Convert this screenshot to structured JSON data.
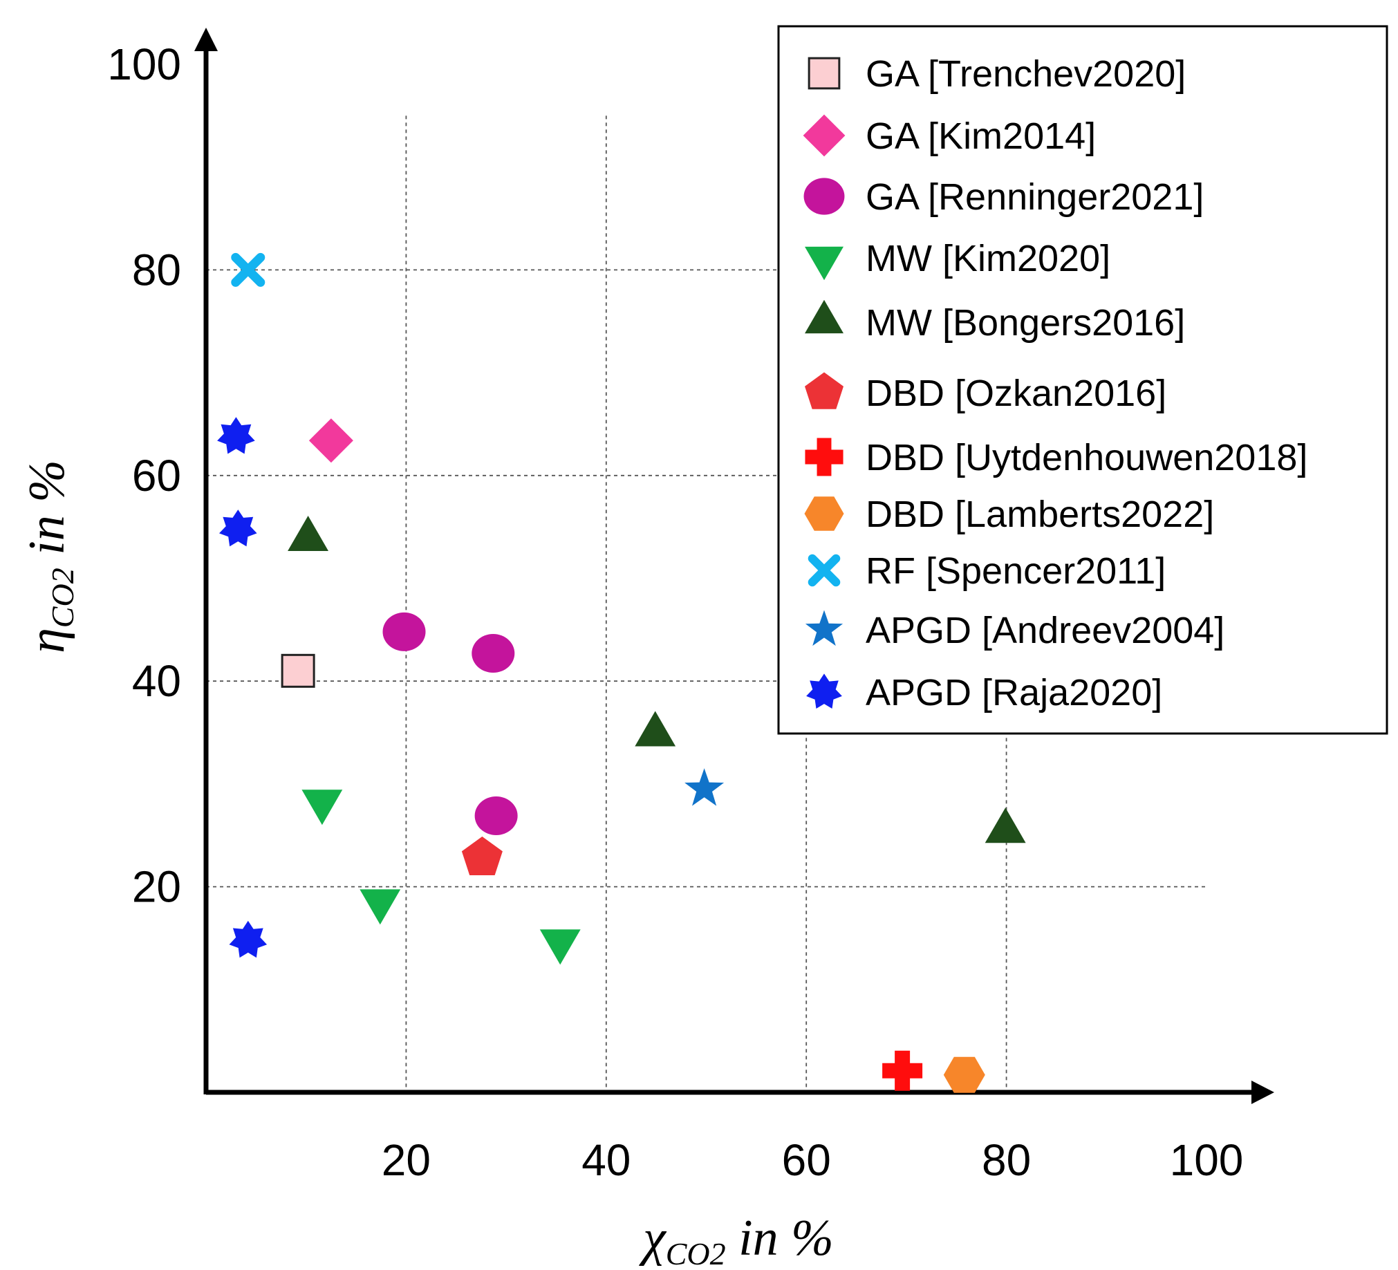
{
  "chart_data": {
    "type": "scatter",
    "title": "",
    "xlabel": {
      "symbol": "χ",
      "subscript": "CO2",
      "suffix": " in %"
    },
    "ylabel": {
      "symbol": "η",
      "subscript": "CO2",
      "suffix": " in %"
    },
    "xlim": [
      0,
      100
    ],
    "ylim": [
      0,
      100
    ],
    "x_ticks": [
      "20",
      "40",
      "60",
      "80",
      "100"
    ],
    "y_ticks": [
      "20",
      "40",
      "60",
      "80",
      "100"
    ],
    "grid": true,
    "legend_position": "top-right",
    "series": [
      {
        "name": "GA [Trenchev2020]",
        "marker": "square",
        "color": "#fccfd2",
        "points": [
          {
            "x": 9.2,
            "y": 41
          }
        ]
      },
      {
        "name": "GA [Kim2014]",
        "marker": "diamond",
        "color": "#f2399c",
        "points": [
          {
            "x": 12.5,
            "y": 63.4
          }
        ]
      },
      {
        "name": "GA [Renninger2021]",
        "marker": "circle",
        "color": "#c4149c",
        "points": [
          {
            "x": 19.8,
            "y": 44.8
          },
          {
            "x": 28.7,
            "y": 42.7
          },
          {
            "x": 29,
            "y": 26.9
          }
        ]
      },
      {
        "name": "MW [Kim2020]",
        "marker": "triangle-down",
        "color": "#13b24a",
        "points": [
          {
            "x": 11.6,
            "y": 28.3
          },
          {
            "x": 17.4,
            "y": 18.6
          },
          {
            "x": 35.4,
            "y": 14.7
          }
        ]
      },
      {
        "name": "MW [Bongers2016]",
        "marker": "triangle-up",
        "color": "#1f4e1a",
        "points": [
          {
            "x": 10.2,
            "y": 53.8
          },
          {
            "x": 44.9,
            "y": 34.8
          },
          {
            "x": 79.9,
            "y": 25.4
          }
        ]
      },
      {
        "name": "DBD [Ozkan2016]",
        "marker": "pentagon",
        "color": "#ec3236",
        "points": [
          {
            "x": 27.6,
            "y": 22.8
          }
        ]
      },
      {
        "name": "DBD [Uytdenhouwen2018]",
        "marker": "cross",
        "color": "#ff0d0d",
        "points": [
          {
            "x": 69.6,
            "y": 2.1
          }
        ]
      },
      {
        "name": "DBD [Lamberts2022]",
        "marker": "hexagon",
        "color": "#f7862a",
        "points": [
          {
            "x": 75.8,
            "y": 1.7
          }
        ]
      },
      {
        "name": "RF [Spencer2011]",
        "marker": "x",
        "color": "#13b3f0",
        "points": [
          {
            "x": 4.2,
            "y": 80
          }
        ]
      },
      {
        "name": "APGD [Andreev2004]",
        "marker": "star",
        "color": "#1173c9",
        "points": [
          {
            "x": 49.8,
            "y": 29.5
          }
        ]
      },
      {
        "name": "APGD [Raja2020]",
        "marker": "star7",
        "color": "#0f1ff0",
        "points": [
          {
            "x": 3,
            "y": 63.8
          },
          {
            "x": 3.2,
            "y": 54.8
          },
          {
            "x": 4.2,
            "y": 14.8
          }
        ]
      }
    ]
  }
}
